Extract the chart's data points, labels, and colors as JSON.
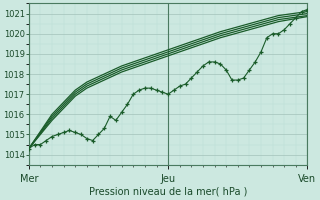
{
  "xlabel": "Pression niveau de la mer( hPa )",
  "ylim": [
    1013.5,
    1021.5
  ],
  "yticks": [
    1014,
    1015,
    1016,
    1017,
    1018,
    1019,
    1020,
    1021
  ],
  "day_labels": [
    "Mer",
    "Jeu",
    "Ven"
  ],
  "day_positions": [
    0,
    24,
    48
  ],
  "xlim": [
    0,
    48
  ],
  "bg_color": "#cce8e0",
  "grid_color_major": "#aac8c0",
  "grid_color_minor": "#bbddd5",
  "line_color": "#1a5c2a",
  "marker_color": "#1a5c2a",
  "noisy_series": [
    1014.3,
    1014.5,
    1014.5,
    1014.7,
    1014.9,
    1015.0,
    1015.1,
    1015.2,
    1015.1,
    1015.0,
    1014.8,
    1014.7,
    1015.0,
    1015.3,
    1015.9,
    1015.7,
    1016.1,
    1016.5,
    1017.0,
    1017.2,
    1017.3,
    1017.3,
    1017.2,
    1017.1,
    1017.0,
    1017.2,
    1017.4,
    1017.5,
    1017.8,
    1018.1,
    1018.4,
    1018.6,
    1018.6,
    1018.5,
    1018.2,
    1017.7,
    1017.7,
    1017.8,
    1018.2,
    1018.6,
    1019.1,
    1019.8,
    1020.0,
    1020.0,
    1020.2,
    1020.5,
    1020.8,
    1021.1,
    1021.2
  ],
  "smooth_series": [
    [
      1014.3,
      1016.0,
      1017.2,
      1017.6,
      1018.0,
      1018.4,
      1018.8,
      1019.2,
      1019.7,
      1020.1,
      1020.5,
      1020.9,
      1021.1
    ],
    [
      1014.3,
      1015.9,
      1017.1,
      1017.5,
      1017.9,
      1018.3,
      1018.7,
      1019.1,
      1019.6,
      1020.0,
      1020.4,
      1020.8,
      1021.0
    ],
    [
      1014.3,
      1015.8,
      1017.0,
      1017.4,
      1017.8,
      1018.2,
      1018.6,
      1019.0,
      1019.5,
      1019.9,
      1020.3,
      1020.7,
      1020.9
    ],
    [
      1014.3,
      1015.7,
      1016.9,
      1017.3,
      1017.7,
      1018.1,
      1018.5,
      1018.9,
      1019.4,
      1019.8,
      1020.2,
      1020.6,
      1020.85
    ]
  ],
  "smooth_x_positions": [
    0,
    4,
    8,
    10,
    13,
    16,
    20,
    24,
    29,
    33,
    38,
    43,
    48
  ]
}
